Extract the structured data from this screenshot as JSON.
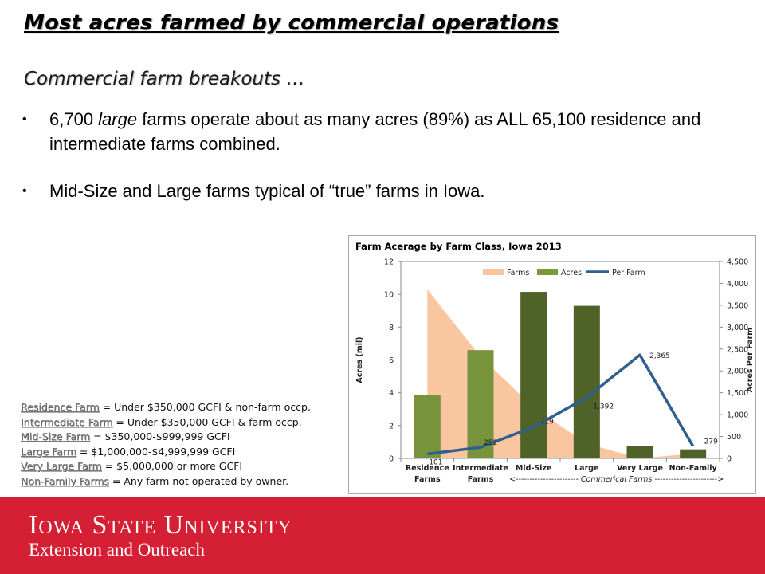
{
  "slide": {
    "title": "Most acres farmed by commercial operations",
    "subtitle": "Commercial farm breakouts …",
    "bullets": [
      {
        "pre": "6,700 ",
        "em": "large",
        "post": " farms operate about as many acres (89%) as ALL 65,100 residence and intermediate farms combined."
      },
      {
        "pre": "Mid-Size and Large farms typical of “true” farms in Iowa.",
        "em": "",
        "post": ""
      }
    ],
    "bullet_glyph": "•",
    "definitions": [
      {
        "term": "Residence Farm",
        "text": " = Under $350,000 GCFI & non-farm occp."
      },
      {
        "term": "Intermediate Farm",
        "text": " = Under $350,000 GCFI & farm occp."
      },
      {
        "term": "Mid-Size Farm",
        "text": " = $350,000-$999,999 GCFI"
      },
      {
        "term": "Large Farm",
        "text": " = $1,000,000-$4,999,999 GCFI"
      },
      {
        "term": "Very Large Farm",
        "text": " = $5,000,000 or more GCFI"
      },
      {
        "term": "Non-Family Farms",
        "text": " = Any farm not operated by owner."
      }
    ]
  },
  "footer": {
    "university": "Iowa State University",
    "unit": "Extension and Outreach",
    "color": "#d41f34"
  },
  "chart_data": {
    "type": "bar",
    "title": "Farm Acerage by Farm Class, Iowa 2013",
    "ylabel": "Acres (mil)",
    "y2label": "Acres Per Farm",
    "ylim": [
      0,
      12
    ],
    "yticks": [
      0,
      2,
      4,
      6,
      8,
      10,
      12
    ],
    "y2lim": [
      0,
      4500
    ],
    "y2ticks": [
      0,
      500,
      1000,
      1500,
      2000,
      2500,
      3000,
      3500,
      4000,
      4500
    ],
    "y2ticklabels": [
      "0",
      "500",
      "1,000",
      "1,500",
      "2,000",
      "2,500",
      "3,000",
      "3,500",
      "4,000",
      "4,500"
    ],
    "categories": [
      "Residence Farms",
      "Intermediate Farms",
      "Mid-Size",
      "Large",
      "Very Large",
      "Non-Family"
    ],
    "category_lines": [
      [
        "Residence",
        "Farms"
      ],
      [
        "Intermediate",
        "Farms"
      ],
      [
        "Mid-Size"
      ],
      [
        "Large"
      ],
      [
        "Very Large"
      ],
      [
        "Non-Family"
      ]
    ],
    "series": [
      {
        "name": "Farms",
        "type": "area",
        "axis": "left",
        "color": "#f9c6a0",
        "values": [
          10.3,
          6.2,
          3.1,
          0.9,
          0.0,
          0.3
        ]
      },
      {
        "name": "Acres",
        "type": "bar",
        "axis": "left",
        "color": "#7a9a3a",
        "colors": [
          "#77933c",
          "#77933c",
          "#4f6228",
          "#4f6228",
          "#4f6228",
          "#4f6228"
        ],
        "values": [
          3.85,
          6.6,
          10.15,
          9.3,
          0.75,
          0.55
        ]
      },
      {
        "name": "Per Farm",
        "type": "line",
        "axis": "right",
        "color": "#2f5f8f",
        "values": [
          101,
          252,
          719,
          1392,
          2365,
          279
        ],
        "labels": [
          "101",
          "252",
          "719",
          "1,392",
          "2,365",
          "279"
        ]
      }
    ],
    "annotation": "<----------------------- Commerical Farms ----------------------->",
    "legend": "top-center",
    "grid": false
  }
}
